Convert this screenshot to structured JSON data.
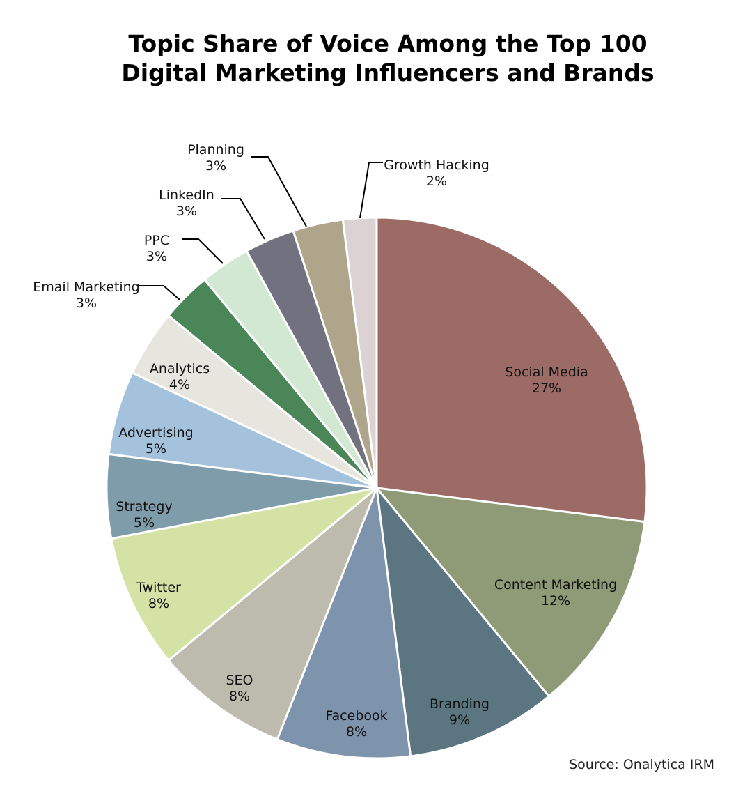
{
  "chart_data": {
    "type": "pie",
    "title_line1": "Topic Share of Voice Among the Top 100",
    "title_line2": "Digital Marketing Influencers and Brands",
    "source": "Source: Onalytica IRM",
    "start": "top",
    "direction": "clockwise",
    "slices": [
      {
        "label": "Social Media",
        "value": 27,
        "pct": "27%",
        "color": "#9c6b65"
      },
      {
        "label": "Content Marketing",
        "value": 12,
        "pct": "12%",
        "color": "#8f9b77"
      },
      {
        "label": "Branding",
        "value": 9,
        "pct": "9%",
        "color": "#5b7681"
      },
      {
        "label": "Facebook",
        "value": 8,
        "pct": "8%",
        "color": "#7e93ac"
      },
      {
        "label": "SEO",
        "value": 8,
        "pct": "8%",
        "color": "#bcbbae"
      },
      {
        "label": "Twitter",
        "value": 8,
        "pct": "8%",
        "color": "#d4e3a5"
      },
      {
        "label": "Strategy",
        "value": 5,
        "pct": "5%",
        "color": "#7f9cab"
      },
      {
        "label": "Advertising",
        "value": 5,
        "pct": "5%",
        "color": "#a4c2dc"
      },
      {
        "label": "Analytics",
        "value": 4,
        "pct": "4%",
        "color": "#e6e6df"
      },
      {
        "label": "Email Marketing",
        "value": 3,
        "pct": "3%",
        "color": "#4a8657"
      },
      {
        "label": "PPC",
        "value": 3,
        "pct": "3%",
        "color": "#d3e8d2"
      },
      {
        "label": "LinkedIn",
        "value": 3,
        "pct": "3%",
        "color": "#72717f"
      },
      {
        "label": "Planning",
        "value": 3,
        "pct": "3%",
        "color": "#aea58b"
      },
      {
        "label": "Growth Hacking",
        "value": 2,
        "pct": "2%",
        "color": "#dcd2d3"
      }
    ]
  }
}
